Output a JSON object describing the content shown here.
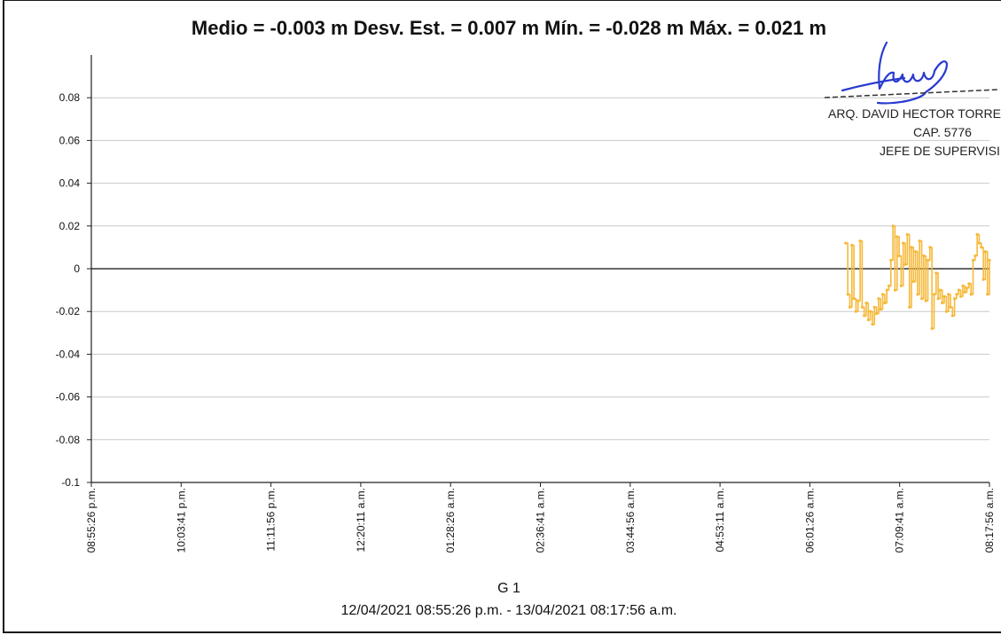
{
  "chart_data": {
    "type": "line",
    "title": "Medio = -0.003 m  Desv. Est. = 0.007 m  Mín. = -0.028 m  Máx. = 0.021 m",
    "xlabel": "G 1",
    "xlabel_sub": "12/04/2021 08:55:26 p.m. - 13/04/2021 08:17:56 a.m.",
    "ylabel": "",
    "ylim": [
      -0.1,
      0.1
    ],
    "yticks": [
      0.08,
      0.06,
      0.04,
      0.02,
      0,
      -0.02,
      -0.04,
      -0.06,
      -0.08,
      -0.1
    ],
    "ytick_labels": [
      "0.08",
      "0.06",
      "0.04",
      "0.02",
      "0",
      "-0.02",
      "-0.04",
      "-0.06",
      "-0.08",
      "-0.1"
    ],
    "xticks": [
      "08:55:26 p.m.",
      "10:03:41 p.m.",
      "11:11:56 p.m.",
      "12:20:11 a.m.",
      "01:28:26 a.m.",
      "02:36:41 a.m.",
      "03:44:56 a.m.",
      "04:53:11 a.m.",
      "06:01:26 a.m.",
      "07:09:41 a.m.",
      "08:17:56 a.m."
    ],
    "xlim": [
      "08:55:26 p.m.",
      "08:17:56 a.m."
    ],
    "grid": true,
    "zero_line": true,
    "series": [
      {
        "color": "#f6b93b",
        "x_start": "06:28:41 a.m.",
        "x_end": "08:17:56 a.m.",
        "values": [
          0.012,
          -0.012,
          -0.018,
          0.011,
          -0.014,
          -0.02,
          -0.015,
          0.013,
          -0.018,
          -0.022,
          -0.016,
          -0.024,
          -0.02,
          -0.026,
          -0.018,
          -0.021,
          -0.014,
          -0.019,
          -0.012,
          -0.016,
          -0.01,
          -0.008,
          0.004,
          0.02,
          -0.01,
          0.015,
          0.006,
          -0.008,
          0.012,
          0.002,
          0.016,
          -0.018,
          0.01,
          -0.006,
          0.008,
          -0.012,
          0.013,
          -0.014,
          0.006,
          -0.015,
          0.004,
          0.01,
          -0.028,
          -0.012,
          -0.002,
          -0.014,
          -0.01,
          -0.016,
          -0.013,
          -0.02,
          -0.012,
          -0.018,
          -0.022,
          -0.014,
          -0.012,
          -0.01,
          -0.013,
          -0.008,
          -0.011,
          -0.009,
          -0.007,
          -0.012,
          0.004,
          0.006,
          0.016,
          0.012,
          0.01,
          -0.005,
          0.008,
          -0.012,
          0.004
        ]
      }
    ]
  },
  "stamp": {
    "name": "ARQ. DAVID HECTOR TORRE",
    "cap": "CAP. 5776",
    "role": "JEFE DE SUPERVISI"
  }
}
